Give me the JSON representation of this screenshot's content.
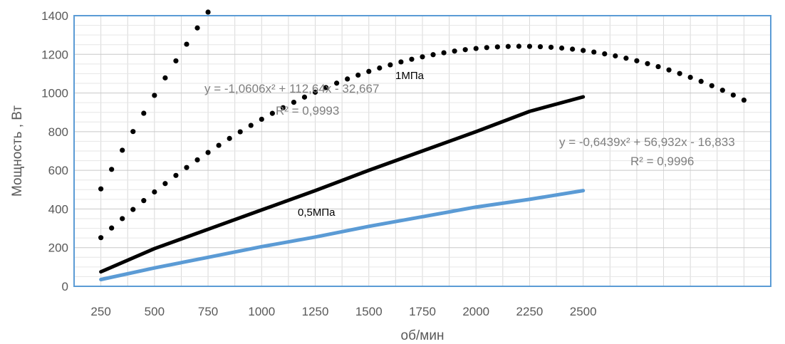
{
  "chart_data": {
    "type": "scatter",
    "xlabel": "об/мин",
    "ylabel": "Мощность , Вт",
    "xlim": [
      125,
      3375
    ],
    "ylim": [
      0,
      1400
    ],
    "x_ticks": [
      250,
      500,
      750,
      1000,
      1250,
      1500,
      1750,
      2000,
      2250,
      2500
    ],
    "x_tick_labels": [
      "250",
      "500",
      "750",
      "1000",
      "1250",
      "1500",
      "1750",
      "2000",
      "2250",
      "2500"
    ],
    "y_ticks": [
      0,
      200,
      400,
      600,
      800,
      1000,
      1200,
      1400
    ],
    "y_tick_labels": [
      "0",
      "200",
      "400",
      "600",
      "800",
      "1000",
      "1200",
      "1400"
    ],
    "grid": true,
    "series": [
      {
        "name": "1МПа",
        "color": "#000000",
        "line": {
          "x": [
            250,
            500,
            750,
            1000,
            1250,
            1500,
            1750,
            2000,
            2250,
            2500
          ],
          "y": [
            75,
            195,
            295,
            395,
            495,
            600,
            700,
            800,
            905,
            980
          ]
        },
        "points_range": [
          250,
          3250
        ],
        "points_step": 50,
        "trendline": {
          "a": -1.0606,
          "b": 112.64,
          "c": -32.667,
          "x_scale": 0.02
        },
        "equation": "y = -1,0606x² + 112,64x - 32,667",
        "r2": "R² = 0,9993"
      },
      {
        "name": "0,5МПа",
        "color": "#5b9bd5",
        "line": {
          "x": [
            250,
            500,
            750,
            1000,
            1250,
            1500,
            1750,
            2000,
            2250,
            2500
          ],
          "y": [
            35,
            95,
            150,
            205,
            255,
            310,
            360,
            410,
            450,
            495
          ]
        },
        "points_range": [
          250,
          3250
        ],
        "points_step": 50,
        "trendline": {
          "a": -0.6439,
          "b": 56.932,
          "c": -16.833,
          "x_scale": 0.02
        },
        "equation": "y = -0,6439x² + 56,932x - 16,833",
        "r2": "R² = 0,9996"
      }
    ]
  }
}
